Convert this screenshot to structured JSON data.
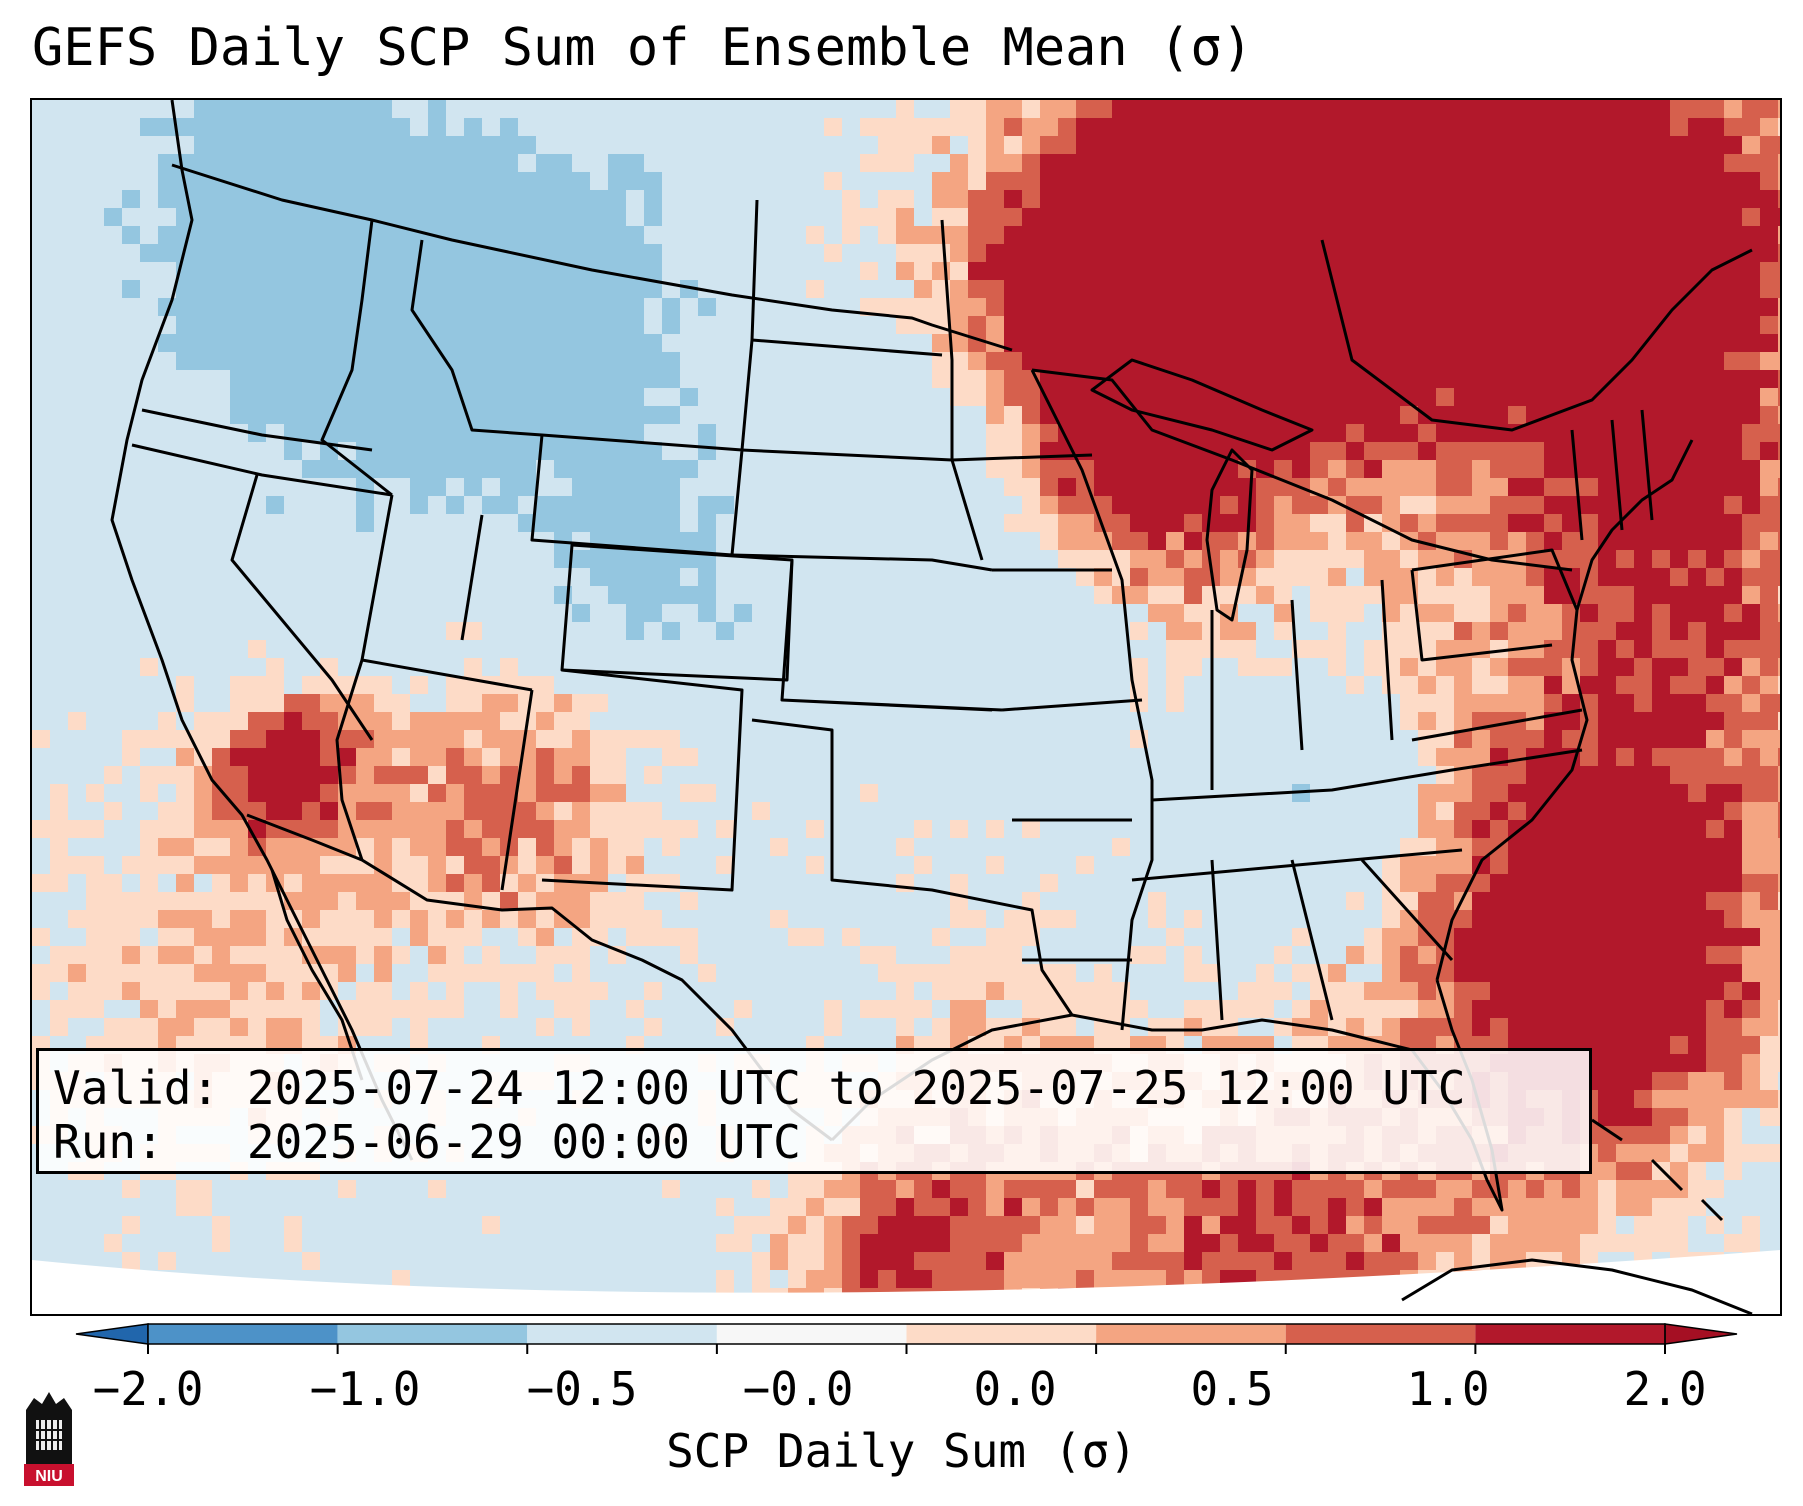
{
  "title": "GEFS Daily SCP Sum of Ensemble Mean (σ)",
  "info": {
    "valid_label": "Valid:",
    "valid_value": "2025-07-24 12:00 UTC to 2025-07-25 12:00 UTC",
    "run_label": "Run:",
    "run_value": "2025-06-29 00:00 UTC"
  },
  "colorbar": {
    "label": "SCP Daily Sum (σ)",
    "ticks": [
      "−2.0",
      "−1.0",
      "−0.5",
      "−0.0",
      "0.0",
      "0.5",
      "1.0",
      "2.0"
    ],
    "colors": [
      "#4d92c8",
      "#94c6e0",
      "#d1e5f0",
      "#f7f7f7",
      "#fddbc7",
      "#f4a582",
      "#d6604d",
      "#b2182b"
    ],
    "under_color": "#2166ac",
    "over_color": "#a50f23"
  },
  "logo": {
    "text": "NIU",
    "color": "#c8102e"
  },
  "map": {
    "background_color": "#d1e5f0",
    "outside_color": "#ffffff"
  }
}
